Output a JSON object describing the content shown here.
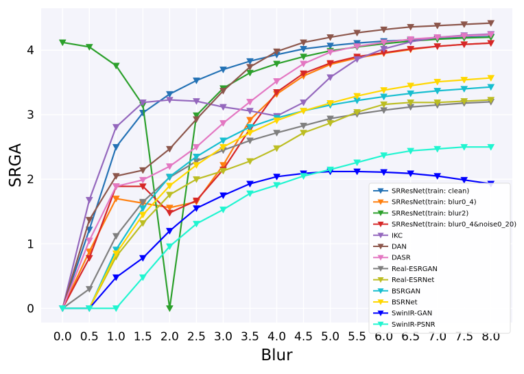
{
  "chart_data": {
    "type": "line",
    "title": "",
    "xlabel": "Blur",
    "ylabel": "SRGA",
    "x": [
      0.0,
      0.5,
      1.0,
      1.5,
      2.0,
      2.5,
      3.0,
      3.5,
      4.0,
      4.5,
      5.0,
      5.5,
      6.0,
      6.5,
      7.0,
      7.5,
      8.0
    ],
    "x_tick_labels": [
      "0.0",
      "0.5",
      "1.0",
      "1.5",
      "2.0",
      "2.5",
      "3.0",
      "3.5",
      "4.0",
      "4.5",
      "5.0",
      "5.5",
      "6.0",
      "6.5",
      "7.0",
      "7.5",
      "8.0"
    ],
    "y_ticks": [
      0,
      1,
      2,
      3,
      4
    ],
    "y_tick_labels": [
      "0",
      "1",
      "2",
      "3",
      "4"
    ],
    "xlim": [
      -0.4,
      8.4
    ],
    "ylim": [
      -0.22,
      4.65
    ],
    "grid": true,
    "legend_position": "lower-right",
    "background": "#f4f4fb",
    "marker": "triangle-down",
    "series": [
      {
        "name": "SRResNet(train: clean)",
        "color": "#2472b5",
        "values": [
          0.0,
          1.22,
          2.5,
          3.03,
          3.32,
          3.53,
          3.7,
          3.83,
          3.93,
          4.02,
          4.07,
          4.11,
          4.14,
          4.16,
          4.18,
          4.2,
          4.21
        ]
      },
      {
        "name": "SRResNet(train: blur0_4)",
        "color": "#ff7f0e",
        "values": [
          0.0,
          0.88,
          1.7,
          1.63,
          1.56,
          1.65,
          2.22,
          2.92,
          3.32,
          3.6,
          3.78,
          3.88,
          3.95,
          4.01,
          4.06,
          4.09,
          4.11
        ]
      },
      {
        "name": "SRResNet(train: blur2)",
        "color": "#2ca02c",
        "values": [
          4.12,
          4.05,
          3.76,
          3.15,
          0.0,
          2.99,
          3.41,
          3.65,
          3.79,
          3.9,
          3.99,
          4.05,
          4.1,
          4.14,
          4.17,
          4.19,
          4.2
        ]
      },
      {
        "name": "SRResNet(train: blur0_4&noise0_20)",
        "color": "#d62728",
        "values": [
          0.0,
          0.78,
          1.89,
          1.89,
          1.48,
          1.67,
          2.15,
          2.78,
          3.35,
          3.64,
          3.8,
          3.9,
          3.96,
          4.02,
          4.06,
          4.09,
          4.11
        ]
      },
      {
        "name": "IKC",
        "color": "#9467bd",
        "values": [
          0.0,
          1.68,
          2.81,
          3.19,
          3.23,
          3.21,
          3.12,
          3.06,
          2.98,
          3.19,
          3.58,
          3.86,
          4.02,
          4.13,
          4.2,
          4.23,
          4.25
        ]
      },
      {
        "name": "DAN",
        "color": "#8c564b",
        "values": [
          0.0,
          1.37,
          2.05,
          2.14,
          2.47,
          2.93,
          3.37,
          3.74,
          3.98,
          4.12,
          4.2,
          4.27,
          4.32,
          4.36,
          4.38,
          4.4,
          4.42
        ]
      },
      {
        "name": "DASR",
        "color": "#e377c2",
        "values": [
          0.0,
          1.05,
          1.89,
          1.99,
          2.2,
          2.5,
          2.87,
          3.2,
          3.52,
          3.79,
          3.97,
          4.06,
          4.12,
          4.17,
          4.2,
          4.22,
          4.24
        ]
      },
      {
        "name": "Real-ESRGAN",
        "color": "#7f7f7f",
        "values": [
          0.0,
          0.3,
          1.12,
          1.65,
          2.03,
          2.28,
          2.45,
          2.6,
          2.72,
          2.83,
          2.94,
          3.01,
          3.07,
          3.12,
          3.15,
          3.18,
          3.2
        ]
      },
      {
        "name": "Real-ESRNet",
        "color": "#bcbd22",
        "values": [
          0.0,
          0.0,
          0.8,
          1.32,
          1.76,
          2.0,
          2.13,
          2.28,
          2.48,
          2.72,
          2.87,
          3.04,
          3.16,
          3.19,
          3.19,
          3.21,
          3.23
        ]
      },
      {
        "name": "BSRGAN",
        "color": "#17becf",
        "values": [
          0.0,
          0.0,
          0.91,
          1.55,
          2.04,
          2.35,
          2.6,
          2.81,
          2.95,
          3.06,
          3.15,
          3.22,
          3.28,
          3.33,
          3.37,
          3.4,
          3.43
        ]
      },
      {
        "name": "BSRNet",
        "color": "#ffd700",
        "values": [
          0.0,
          0.0,
          0.85,
          1.45,
          1.9,
          2.22,
          2.5,
          2.72,
          2.91,
          3.06,
          3.18,
          3.29,
          3.38,
          3.45,
          3.51,
          3.54,
          3.57
        ]
      },
      {
        "name": "SwinIR-GAN",
        "color": "#0000ff",
        "values": [
          0.0,
          0.0,
          0.48,
          0.78,
          1.2,
          1.55,
          1.75,
          1.93,
          2.04,
          2.09,
          2.12,
          2.12,
          2.11,
          2.09,
          2.05,
          1.99,
          1.93
        ]
      },
      {
        "name": "SwinIR-PSNR",
        "color": "#20f5d0",
        "values": [
          0.0,
          0.0,
          0.0,
          0.48,
          0.96,
          1.31,
          1.53,
          1.78,
          1.91,
          2.05,
          2.15,
          2.26,
          2.37,
          2.44,
          2.47,
          2.5,
          2.5
        ]
      }
    ]
  }
}
